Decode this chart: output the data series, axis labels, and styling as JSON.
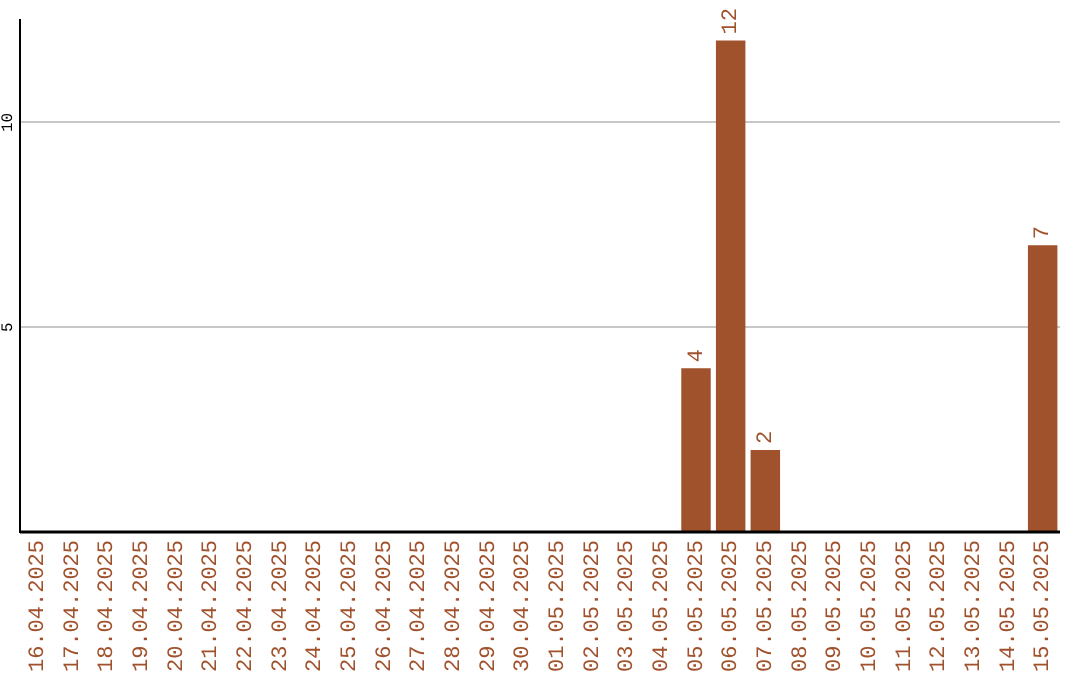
{
  "chart_data": {
    "type": "bar",
    "categories": [
      "16.04.2025",
      "17.04.2025",
      "18.04.2025",
      "19.04.2025",
      "20.04.2025",
      "21.04.2025",
      "22.04.2025",
      "23.04.2025",
      "24.04.2025",
      "25.04.2025",
      "26.04.2025",
      "27.04.2025",
      "28.04.2025",
      "29.04.2025",
      "30.04.2025",
      "01.05.2025",
      "02.05.2025",
      "03.05.2025",
      "04.05.2025",
      "05.05.2025",
      "06.05.2025",
      "07.05.2025",
      "08.05.2025",
      "09.05.2025",
      "10.05.2025",
      "11.05.2025",
      "12.05.2025",
      "13.05.2025",
      "14.05.2025",
      "15.05.2025"
    ],
    "values": [
      0,
      0,
      0,
      0,
      0,
      0,
      0,
      0,
      0,
      0,
      0,
      0,
      0,
      0,
      0,
      0,
      0,
      0,
      0,
      4,
      12,
      2,
      0,
      0,
      0,
      0,
      0,
      0,
      0,
      7
    ],
    "value_labels": [
      null,
      null,
      null,
      null,
      null,
      null,
      null,
      null,
      null,
      null,
      null,
      null,
      null,
      null,
      null,
      null,
      null,
      null,
      null,
      "4",
      "12",
      "2",
      null,
      null,
      null,
      null,
      null,
      null,
      null,
      "7"
    ],
    "color": "#a0522d",
    "ylim": [
      0,
      12.5
    ],
    "yticks": [
      5,
      10
    ],
    "grid": "y",
    "legend": false
  }
}
